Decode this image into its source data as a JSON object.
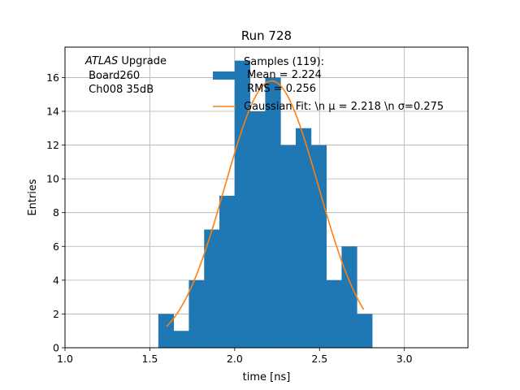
{
  "chart_data": {
    "type": "bar",
    "title": "Run 728",
    "xlabel": "time [ns]",
    "ylabel": "Entries",
    "xlim": [
      1.0,
      3.375
    ],
    "ylim": [
      0,
      17.8
    ],
    "grid": true,
    "x_ticks": [
      "1.0",
      "1.5",
      "2.0",
      "2.5",
      "3.0"
    ],
    "x_tick_values": [
      1.0,
      1.5,
      2.0,
      2.5,
      3.0
    ],
    "y_ticks": [
      "0",
      "2",
      "4",
      "6",
      "8",
      "10",
      "12",
      "14",
      "16"
    ],
    "y_tick_values": [
      0,
      2,
      4,
      6,
      8,
      10,
      12,
      14,
      16
    ],
    "annotation": {
      "line1_italic": "ATLAS",
      "line1_rest": " Upgrade",
      "line2": " Board260",
      "line3": " Ch008 35dB"
    },
    "legend": {
      "placement": "top-center",
      "hist_label_lines": [
        "Samples (119):",
        " Mean = 2.224",
        " RMS = 0.256"
      ],
      "fit_label": "Gaussian Fit: \\n μ = 2.218 \\n σ=0.275"
    },
    "histogram": {
      "name": "Samples",
      "color": "#1f77b4",
      "bin_edges": [
        1.55,
        1.64,
        1.73,
        1.82,
        1.91,
        2.0,
        2.09,
        2.18,
        2.27,
        2.36,
        2.45,
        2.54,
        2.63,
        2.72,
        2.81
      ],
      "counts": [
        2,
        1,
        4,
        7,
        9,
        17,
        14,
        16,
        12,
        13,
        12,
        4,
        6,
        2
      ]
    },
    "fit": {
      "name": "Gaussian Fit",
      "color": "#ff7f0e",
      "mu": 2.218,
      "sigma": 0.275,
      "amplitude": 15.8,
      "x_range": [
        1.6,
        2.76
      ]
    }
  }
}
